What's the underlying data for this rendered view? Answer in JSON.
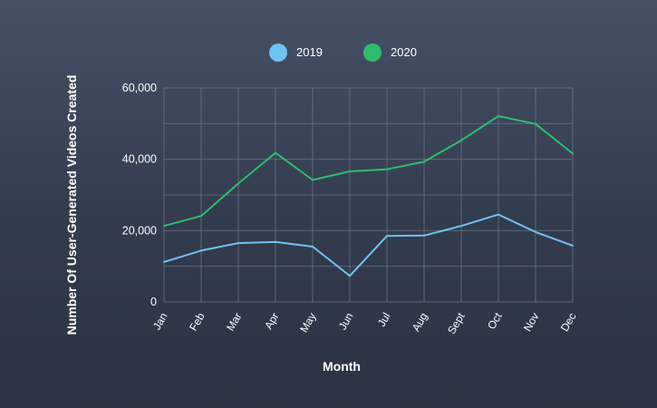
{
  "chart_data": {
    "type": "line",
    "title": "",
    "xlabel": "Month",
    "ylabel": "Number Of User-Generated Videos Created",
    "categories": [
      "Jan",
      "Feb",
      "Mar",
      "Apr",
      "May",
      "Jun",
      "Jul",
      "Aug",
      "Sept",
      "Oct",
      "Nov",
      "Dec"
    ],
    "ylim": [
      0,
      60000
    ],
    "yticks": [
      0,
      20000,
      40000,
      60000
    ],
    "ytick_labels": [
      "0",
      "20,000",
      "40,000",
      "60,000"
    ],
    "grid": true,
    "legend_position": "top-center",
    "series": [
      {
        "name": "2019",
        "color": "#6ec3f5",
        "values": [
          11200,
          14400,
          16500,
          16800,
          15500,
          7300,
          18500,
          18600,
          21300,
          24500,
          19600,
          15800
        ]
      },
      {
        "name": "2020",
        "color": "#2ebd6b",
        "values": [
          21300,
          24100,
          33200,
          41800,
          34200,
          36600,
          37200,
          39300,
          45300,
          52100,
          49900,
          41600
        ]
      }
    ]
  }
}
